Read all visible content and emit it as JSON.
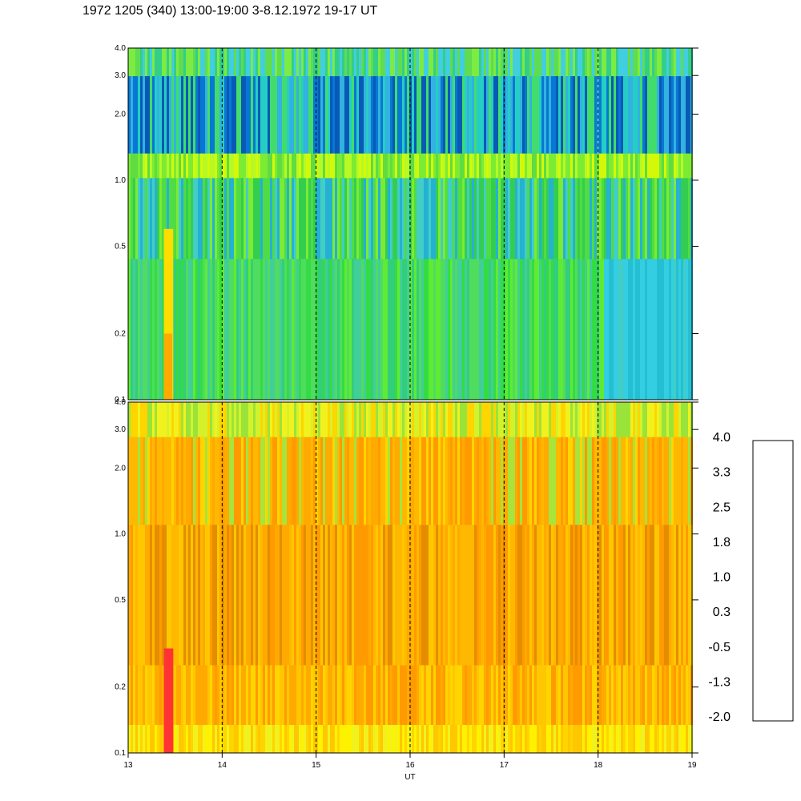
{
  "title": "1972 1205 (340) 13:00-19:00 3-8.12.1972  19-17 UT",
  "chart_data": {
    "type": "heatmap",
    "xlabel": "UT",
    "x_range": [
      13,
      19
    ],
    "x_ticks": [
      "13",
      "14",
      "15",
      "16",
      "17",
      "18",
      "19"
    ],
    "y_scale": "log",
    "y_range": [
      0.1,
      4.0
    ],
    "y_ticks": [
      "0.1",
      "0.2",
      "0.5",
      "1.0",
      "2.0",
      "3.0",
      "4.0"
    ],
    "vertical_dashed_lines": [
      14,
      15,
      16,
      17,
      18
    ],
    "panels": [
      {
        "id": "top",
        "dominant": "green / blue with yellow band near 1.1"
      },
      {
        "id": "bottom",
        "dominant": "orange / yellow"
      }
    ],
    "colorbar": {
      "labels": [
        "4.0",
        "3.3",
        "2.5",
        "1.8",
        "1.0",
        "0.3",
        "-0.5",
        "-1.3",
        "-2.0"
      ],
      "colors": [
        "#ffffff",
        "#ff9999",
        "#ff6666",
        "#ff3333",
        "#d47000",
        "#ff9900",
        "#ffbb00",
        "#ffff00",
        "#99ff33",
        "#33ee33",
        "#55dd88",
        "#33ccff",
        "#0099ff",
        "#0044ff",
        "#0011bb",
        "#000000"
      ]
    }
  }
}
